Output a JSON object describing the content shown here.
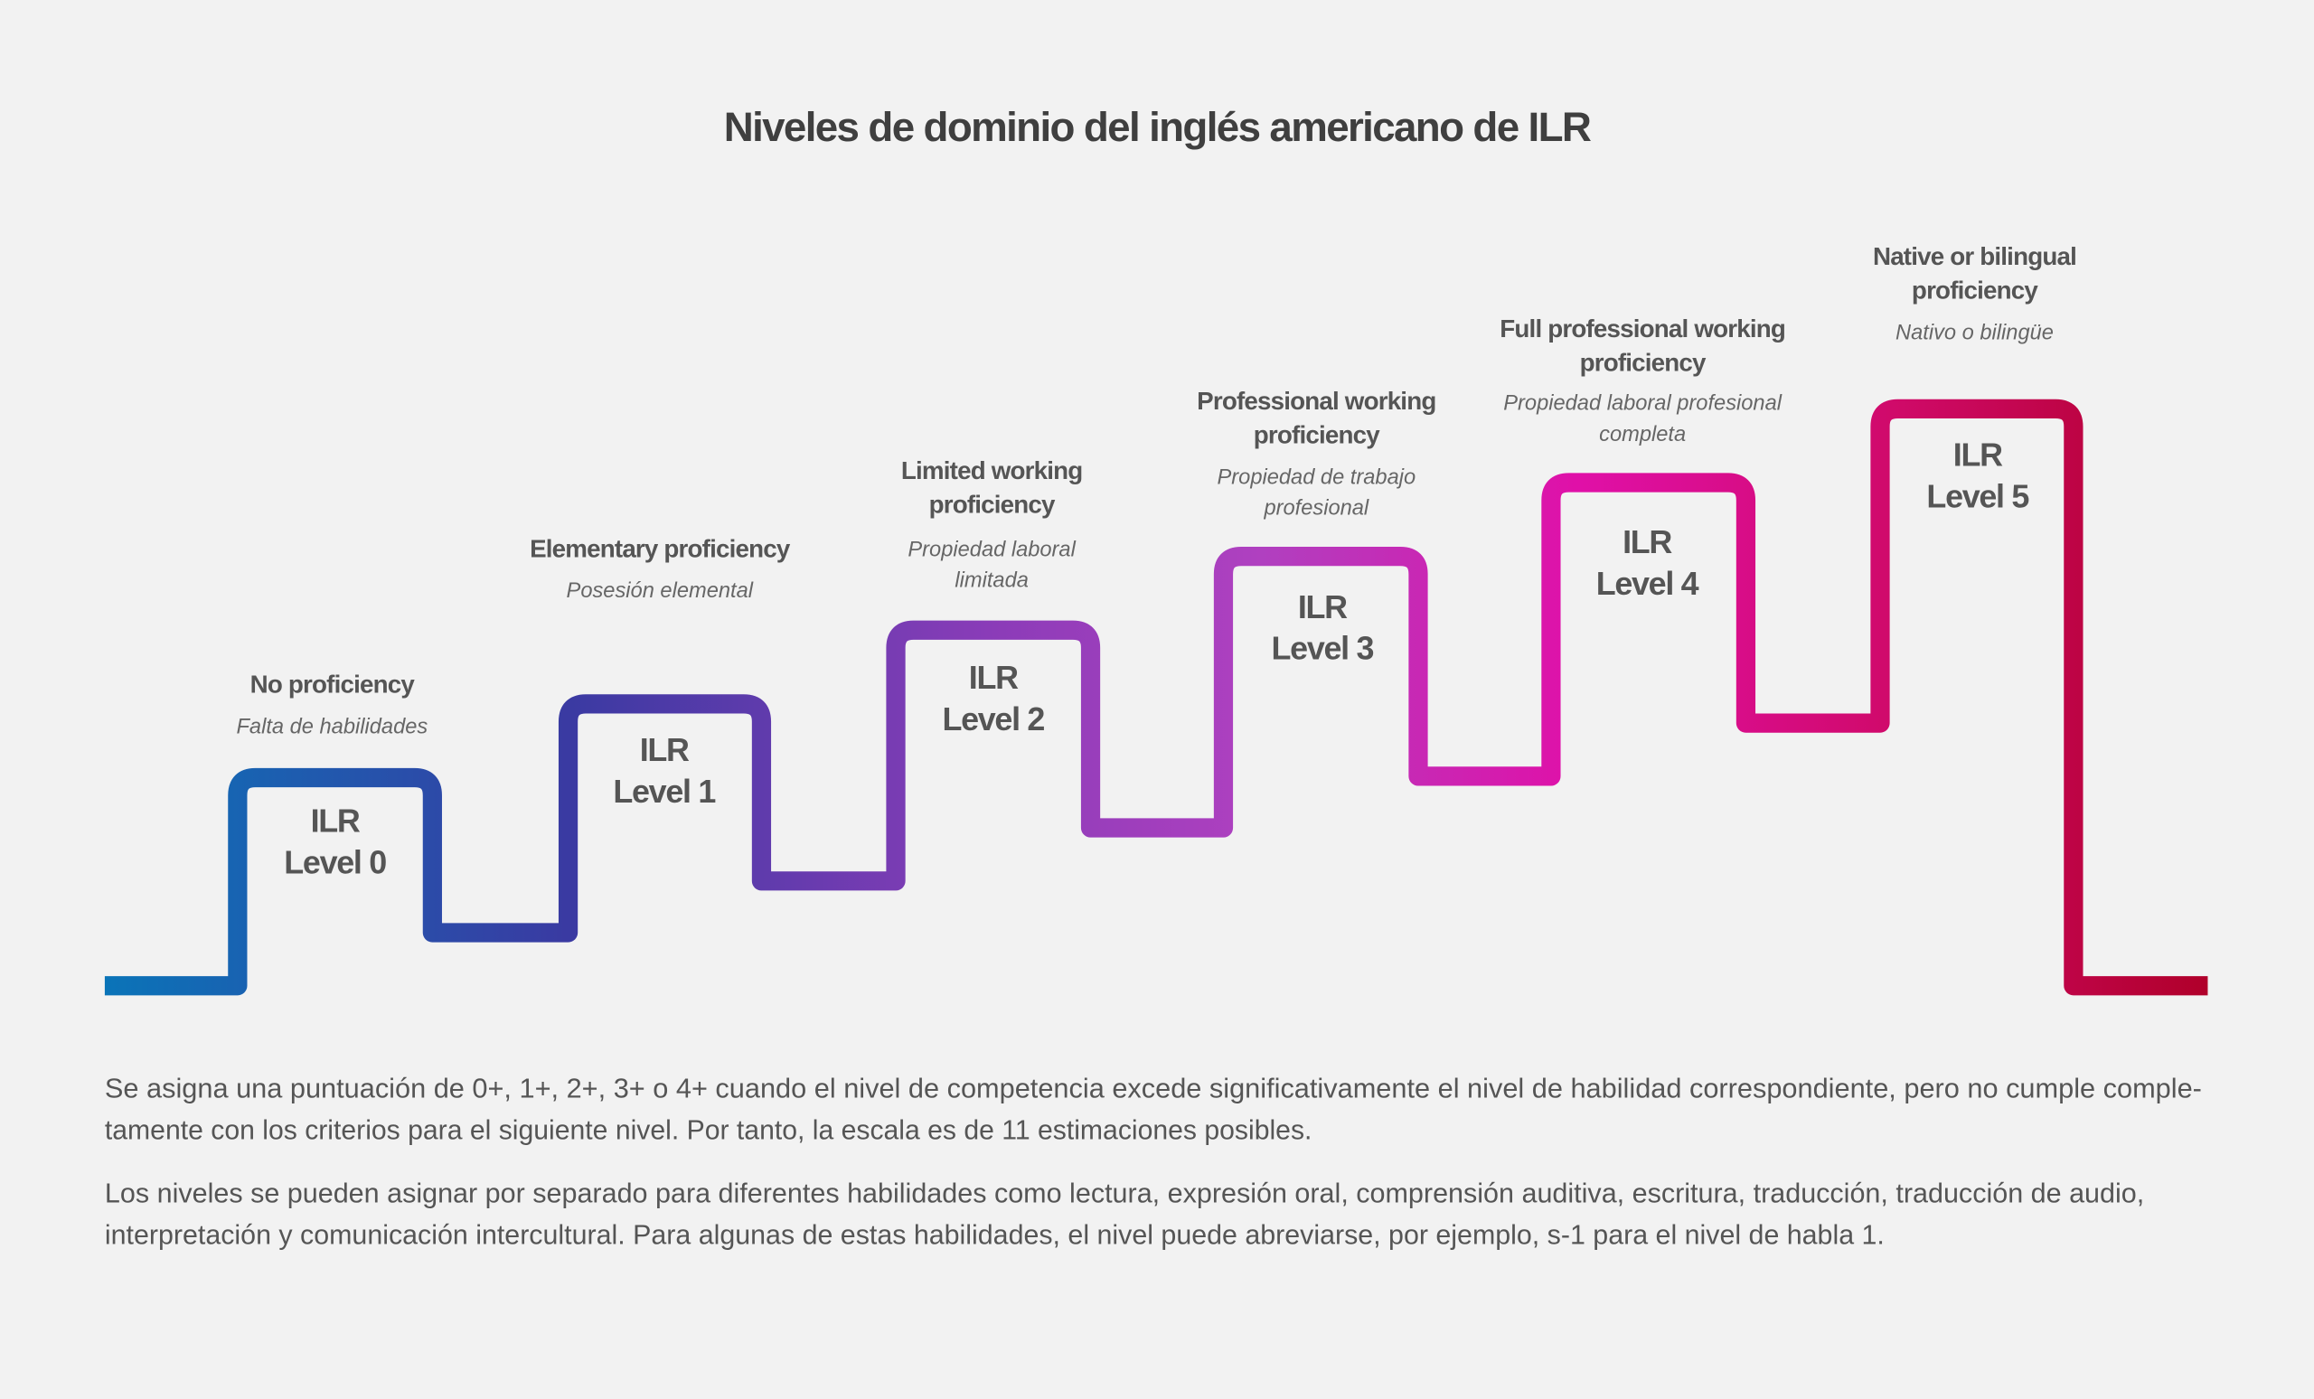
{
  "title": "Niveles de dominio del inglés americano de ILR",
  "levels": [
    {
      "ilr": [
        "ILR",
        "Level 0"
      ],
      "english": [
        "No proficiency"
      ],
      "spanish": [
        "Falta de habilidades"
      ]
    },
    {
      "ilr": [
        "ILR",
        "Level 1"
      ],
      "english": [
        "Elementary proficiency"
      ],
      "spanish": [
        "Posesión elemental"
      ]
    },
    {
      "ilr": [
        "ILR",
        "Level 2"
      ],
      "english": [
        "Limited working",
        "proficiency"
      ],
      "spanish": [
        "Propiedad laboral",
        "limitada"
      ]
    },
    {
      "ilr": [
        "ILR",
        "Level 3"
      ],
      "english": [
        "Professional working",
        "proficiency"
      ],
      "spanish": [
        "Propiedad de trabajo",
        "profesional"
      ]
    },
    {
      "ilr": [
        "ILR",
        "Level 4"
      ],
      "english": [
        "Full professional working",
        "proficiency"
      ],
      "spanish": [
        "Propiedad laboral profesional",
        "completa"
      ]
    },
    {
      "ilr": [
        "ILR",
        "Level 5"
      ],
      "english": [
        "Native or bilingual",
        "proficiency"
      ],
      "spanish": [
        "Nativo o bilingüe"
      ]
    }
  ],
  "paragraphs": [
    [
      "Se asigna una puntuación de 0+, 1+, 2+, 3+ o 4+ cuando el nivel de competencia excede significativamente el nivel de habilidad correspondiente, pero no cumple comple-",
      "tamente con los criterios para el siguiente nivel. Por tanto, la escala es de 11 estimaciones posibles."
    ],
    [
      "Los niveles se pueden asignar por separado para diferentes habilidades como lectura, expresión oral, comprensión auditiva, escritura, traducción, traducción de audio,",
      "interpretación y comunicación intercultural. Para algunas de estas habilidades, el nivel puede abreviarse, por ejemplo, s-1 para el nivel de habla 1."
    ]
  ]
}
